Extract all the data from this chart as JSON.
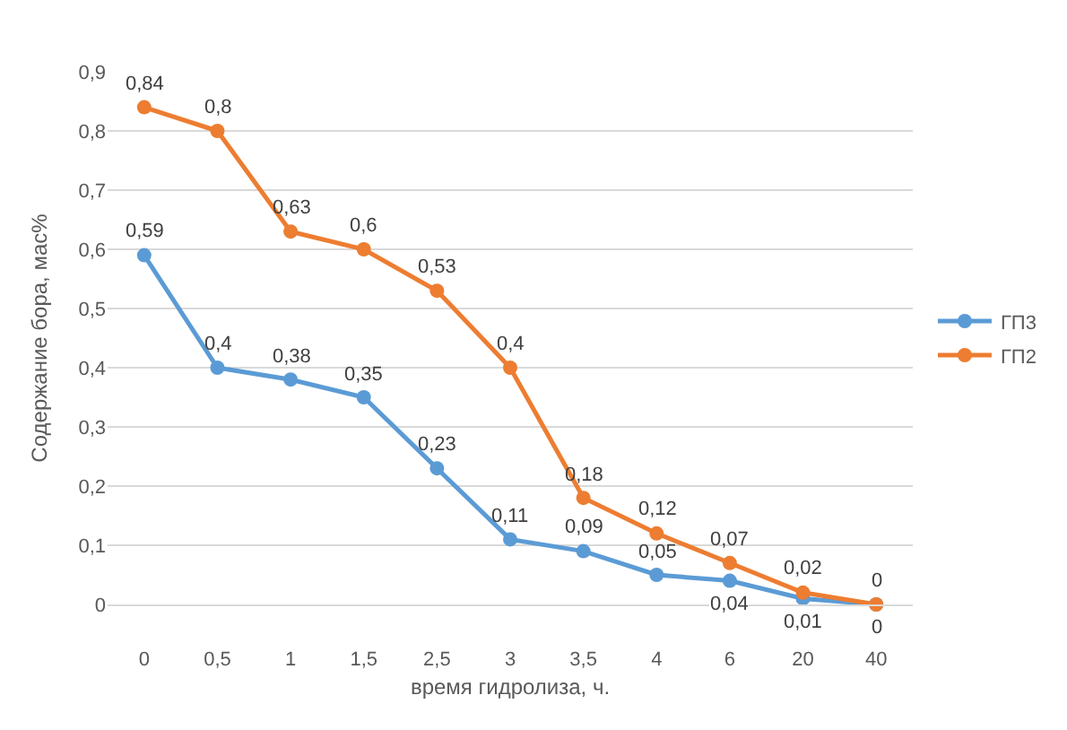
{
  "chart_data": {
    "type": "line",
    "xlabel": "время гидролиза, ч.",
    "ylabel": "Содержание бора, мас%",
    "categories": [
      "0",
      "0,5",
      "1",
      "1,5",
      "2,5",
      "3",
      "3,5",
      "4",
      "6",
      "20",
      "40"
    ],
    "series": [
      {
        "name": "ГП3",
        "color": "#5b9bd5",
        "values": [
          0.59,
          0.4,
          0.38,
          0.35,
          0.23,
          0.11,
          0.09,
          0.05,
          0.04,
          0.01,
          0
        ],
        "value_labels": [
          "0,59",
          "0,4",
          "0,38",
          "0,35",
          "0,23",
          "0,11",
          "0,09",
          "0,05",
          "0,04",
          "0,01",
          "0"
        ]
      },
      {
        "name": "ГП2",
        "color": "#ed7d31",
        "values": [
          0.84,
          0.8,
          0.63,
          0.6,
          0.53,
          0.4,
          0.18,
          0.12,
          0.07,
          0.02,
          0
        ],
        "value_labels": [
          "0,84",
          "0,8",
          "0,63",
          "0,6",
          "0,53",
          "0,4",
          "0,18",
          "0,12",
          "0,07",
          "0,02",
          "0"
        ]
      }
    ],
    "ylim": [
      0,
      0.9
    ],
    "yticks": [
      0,
      {
        "value": 0.1,
        "label": "0,1"
      },
      {
        "value": 0.2,
        "label": "0,2"
      },
      {
        "value": 0.3,
        "label": "0,3"
      },
      {
        "value": 0.4,
        "label": "0,4"
      },
      {
        "value": 0.5,
        "label": "0,5"
      },
      {
        "value": 0.6,
        "label": "0,6"
      },
      {
        "value": 0.7,
        "label": "0,7"
      },
      {
        "value": 0.8,
        "label": "0,8"
      },
      {
        "value": 0.9,
        "label": "0,9"
      }
    ],
    "grid": "y",
    "legend": "right",
    "marker": "circle",
    "line_style": "solid"
  }
}
